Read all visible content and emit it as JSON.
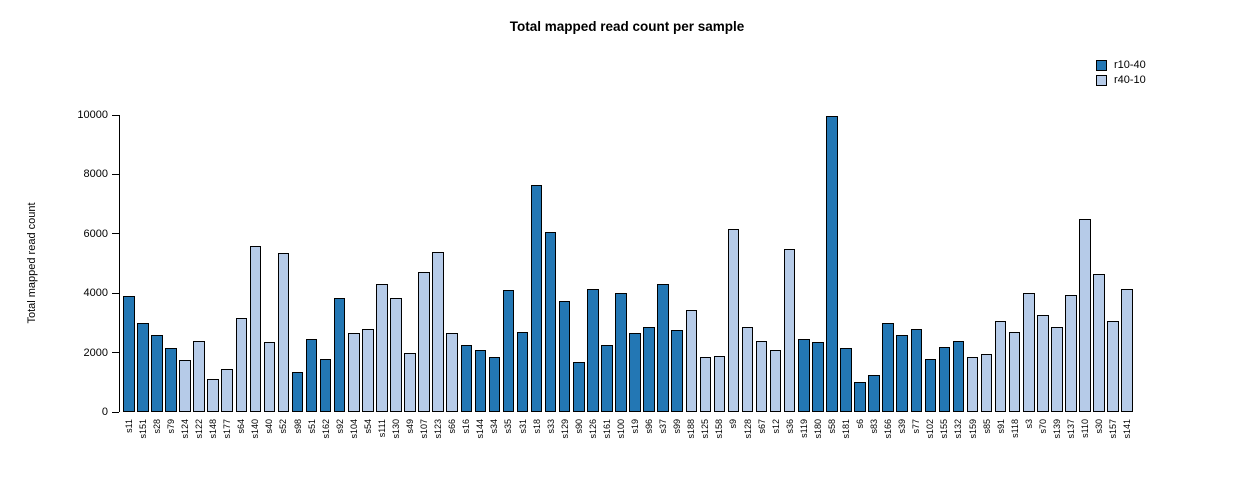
{
  "chart_data": {
    "type": "bar",
    "title": "Total mapped read count per sample",
    "xlabel": "",
    "ylabel": "Total mapped read count",
    "ylim": [
      0,
      10000
    ],
    "yticks": [
      0,
      2000,
      4000,
      6000,
      8000,
      10000
    ],
    "grid": false,
    "legend_position": "top-right",
    "series": [
      {
        "name": "r10-40",
        "color": "#2377b4"
      },
      {
        "name": "r40-10",
        "color": "#b6cbe8"
      }
    ],
    "bar_border_color": "#000000",
    "categories": [
      "s11",
      "s151",
      "s28",
      "s79",
      "s124",
      "s122",
      "s148",
      "s177",
      "s64",
      "s140",
      "s40",
      "s52",
      "s98",
      "s51",
      "s162",
      "s92",
      "s104",
      "s54",
      "s111",
      "s130",
      "s49",
      "s107",
      "s123",
      "s66",
      "s16",
      "s144",
      "s34",
      "s35",
      "s31",
      "s18",
      "s33",
      "s129",
      "s90",
      "s126",
      "s161",
      "s100",
      "s19",
      "s96",
      "s37",
      "s99",
      "s188",
      "s125",
      "s158",
      "s9",
      "s128",
      "s67",
      "s12",
      "s36",
      "s119",
      "s180",
      "s58",
      "s181",
      "s6",
      "s83",
      "s166",
      "s39",
      "s77",
      "s102",
      "s155",
      "s132",
      "s159",
      "s85",
      "s91",
      "s118",
      "s3",
      "s70",
      "s139",
      "s137",
      "s110",
      "s30",
      "s157",
      "s141"
    ],
    "values": [
      3900,
      3000,
      2600,
      2150,
      1750,
      2400,
      1100,
      1450,
      3150,
      5600,
      2350,
      5350,
      1350,
      2450,
      1800,
      3850,
      2650,
      2800,
      4300,
      3850,
      2000,
      4700,
      5400,
      2650,
      2250,
      2100,
      1850,
      4100,
      2700,
      7650,
      6050,
      3750,
      1700,
      4150,
      2250,
      4000,
      2650,
      2850,
      4300,
      2750,
      3450,
      1850,
      1900,
      6150,
      2850,
      2400,
      2100,
      5500,
      2450,
      2350,
      9950,
      2150,
      1000,
      1250,
      3000,
      2600,
      2800,
      1800,
      2200,
      2400,
      1850,
      1950,
      3050,
      2700,
      4000,
      3250,
      2850,
      3950,
      6500,
      4650,
      3050,
      4150
    ],
    "bar_groups": [
      0,
      0,
      0,
      0,
      1,
      1,
      1,
      1,
      1,
      1,
      1,
      1,
      0,
      0,
      0,
      0,
      1,
      1,
      1,
      1,
      1,
      1,
      1,
      1,
      0,
      0,
      0,
      0,
      0,
      0,
      0,
      0,
      0,
      0,
      0,
      0,
      0,
      0,
      0,
      0,
      1,
      1,
      1,
      1,
      1,
      1,
      1,
      1,
      0,
      0,
      0,
      0,
      0,
      0,
      0,
      0,
      0,
      0,
      0,
      0,
      1,
      1,
      1,
      1,
      1,
      1,
      1,
      1,
      1,
      1,
      1,
      1
    ]
  }
}
